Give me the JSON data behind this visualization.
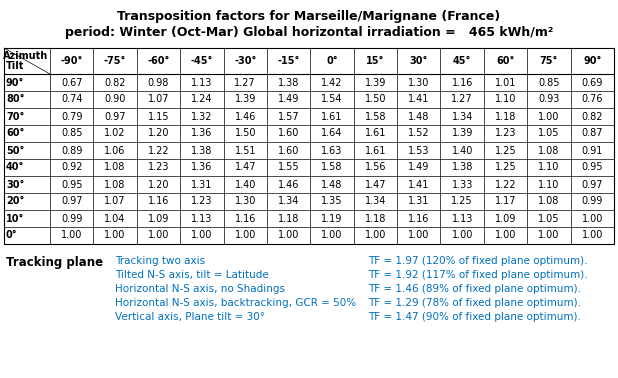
{
  "title1": "Transposition factors for Marseille/Marignane (France)",
  "title2": "period: Winter (Oct-Mar) Global horizontal irradiation =   465 kWh/m²",
  "col_headers": [
    "-90°",
    "-75°",
    "-60°",
    "-45°",
    "-30°",
    "-15°",
    "0°",
    "15°",
    "30°",
    "45°",
    "60°",
    "75°",
    "90°"
  ],
  "row_headers": [
    "90°",
    "80°",
    "70°",
    "60°",
    "50°",
    "40°",
    "30°",
    "20°",
    "10°",
    "0°"
  ],
  "table_data": [
    [
      0.67,
      0.82,
      0.98,
      1.13,
      1.27,
      1.38,
      1.42,
      1.39,
      1.3,
      1.16,
      1.01,
      0.85,
      0.69
    ],
    [
      0.74,
      0.9,
      1.07,
      1.24,
      1.39,
      1.49,
      1.54,
      1.5,
      1.41,
      1.27,
      1.1,
      0.93,
      0.76
    ],
    [
      0.79,
      0.97,
      1.15,
      1.32,
      1.46,
      1.57,
      1.61,
      1.58,
      1.48,
      1.34,
      1.18,
      1.0,
      0.82
    ],
    [
      0.85,
      1.02,
      1.2,
      1.36,
      1.5,
      1.6,
      1.64,
      1.61,
      1.52,
      1.39,
      1.23,
      1.05,
      0.87
    ],
    [
      0.89,
      1.06,
      1.22,
      1.38,
      1.51,
      1.6,
      1.63,
      1.61,
      1.53,
      1.4,
      1.25,
      1.08,
      0.91
    ],
    [
      0.92,
      1.08,
      1.23,
      1.36,
      1.47,
      1.55,
      1.58,
      1.56,
      1.49,
      1.38,
      1.25,
      1.1,
      0.95
    ],
    [
      0.95,
      1.08,
      1.2,
      1.31,
      1.4,
      1.46,
      1.48,
      1.47,
      1.41,
      1.33,
      1.22,
      1.1,
      0.97
    ],
    [
      0.97,
      1.07,
      1.16,
      1.23,
      1.3,
      1.34,
      1.35,
      1.34,
      1.31,
      1.25,
      1.17,
      1.08,
      0.99
    ],
    [
      0.99,
      1.04,
      1.09,
      1.13,
      1.16,
      1.18,
      1.19,
      1.18,
      1.16,
      1.13,
      1.09,
      1.05,
      1.0
    ],
    [
      1.0,
      1.0,
      1.0,
      1.0,
      1.0,
      1.0,
      1.0,
      1.0,
      1.0,
      1.0,
      1.0,
      1.0,
      1.0
    ]
  ],
  "tracking_label": "Tracking plane",
  "tracking_entries": [
    [
      "Tracking two axis",
      "TF = 1.97 (120% of fixed plane optimum)."
    ],
    [
      "Tilted N-S axis, tilt = Latitude",
      "TF = 1.92 (117% of fixed plane optimum)."
    ],
    [
      "Horizontal N-S axis, no Shadings",
      "TF = 1.46 (89% of fixed plane optimum)."
    ],
    [
      "Horizontal N-S axis, backtracking, GCR = 50%",
      "TF = 1.29 (78% of fixed plane optimum)."
    ],
    [
      "Vertical axis, Plane tilt = 30°",
      "TF = 1.47 (90% of fixed plane optimum)."
    ]
  ],
  "text_color": "#000000",
  "blue_color": "#0070C0",
  "bg_color": "#ffffff",
  "title_fontsize": 9,
  "body_fontsize": 7,
  "header_fontsize": 7
}
